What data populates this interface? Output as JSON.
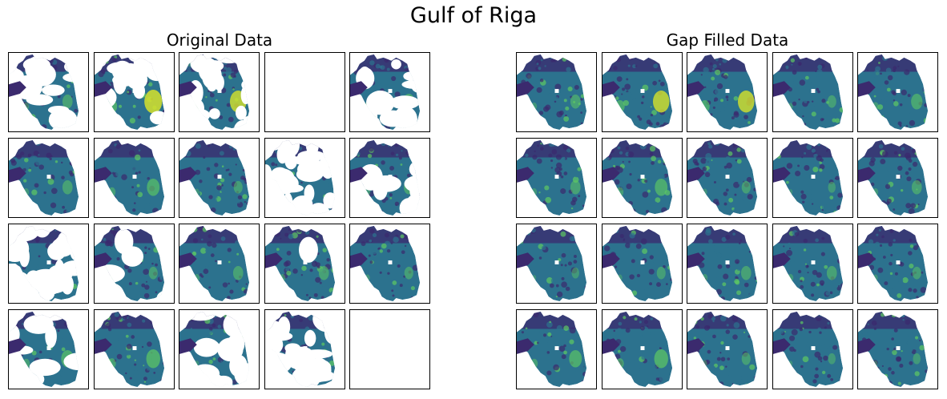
{
  "chart_data": {
    "type": "heatmap",
    "title": "Gulf of Riga",
    "colormap": "viridis",
    "colors": {
      "water_low": "#3b2a6e",
      "water_mid": "#2c728e",
      "water_high": "#5ec962",
      "bloom": "#d6e22b",
      "land": "#ffffff",
      "frame": "#000000"
    },
    "panels": [
      {
        "title": "Original Data",
        "rows": 4,
        "cols": 5,
        "tiles": [
          {
            "coverage": 0.45,
            "bloom": 0.3
          },
          {
            "coverage": 0.3,
            "bloom": 0.9
          },
          {
            "coverage": 0.35,
            "bloom": 0.8
          },
          {
            "coverage": 0.0,
            "bloom": 0.0
          },
          {
            "coverage": 0.6,
            "bloom": 0.4
          },
          {
            "coverage": 1.0,
            "bloom": 0.3
          },
          {
            "coverage": 1.0,
            "bloom": 0.5
          },
          {
            "coverage": 1.0,
            "bloom": 0.2
          },
          {
            "coverage": 0.02,
            "bloom": 0.0
          },
          {
            "coverage": 0.7,
            "bloom": 0.3
          },
          {
            "coverage": 0.05,
            "bloom": 0.0
          },
          {
            "coverage": 0.75,
            "bloom": 0.2
          },
          {
            "coverage": 1.0,
            "bloom": 0.3
          },
          {
            "coverage": 0.95,
            "bloom": 0.3
          },
          {
            "coverage": 1.0,
            "bloom": 0.2
          },
          {
            "coverage": 0.7,
            "bloom": 0.5
          },
          {
            "coverage": 1.0,
            "bloom": 0.6
          },
          {
            "coverage": 0.3,
            "bloom": 0.1
          },
          {
            "coverage": 0.12,
            "bloom": 0.0
          },
          {
            "coverage": 0.0,
            "bloom": 0.0
          }
        ]
      },
      {
        "title": "Gap Filled Data",
        "rows": 4,
        "cols": 5,
        "tiles": [
          {
            "coverage": 1.0,
            "bloom": 0.3
          },
          {
            "coverage": 1.0,
            "bloom": 0.8
          },
          {
            "coverage": 1.0,
            "bloom": 0.8
          },
          {
            "coverage": 1.0,
            "bloom": 0.2
          },
          {
            "coverage": 1.0,
            "bloom": 0.4
          },
          {
            "coverage": 1.0,
            "bloom": 0.3
          },
          {
            "coverage": 1.0,
            "bloom": 0.5
          },
          {
            "coverage": 1.0,
            "bloom": 0.2
          },
          {
            "coverage": 1.0,
            "bloom": 0.1
          },
          {
            "coverage": 1.0,
            "bloom": 0.3
          },
          {
            "coverage": 1.0,
            "bloom": 0.1
          },
          {
            "coverage": 1.0,
            "bloom": 0.2
          },
          {
            "coverage": 1.0,
            "bloom": 0.3
          },
          {
            "coverage": 1.0,
            "bloom": 0.3
          },
          {
            "coverage": 1.0,
            "bloom": 0.2
          },
          {
            "coverage": 1.0,
            "bloom": 0.5
          },
          {
            "coverage": 1.0,
            "bloom": 0.6
          },
          {
            "coverage": 1.0,
            "bloom": 0.2
          },
          {
            "coverage": 1.0,
            "bloom": 0.1
          },
          {
            "coverage": 1.0,
            "bloom": 0.1
          }
        ]
      }
    ]
  }
}
